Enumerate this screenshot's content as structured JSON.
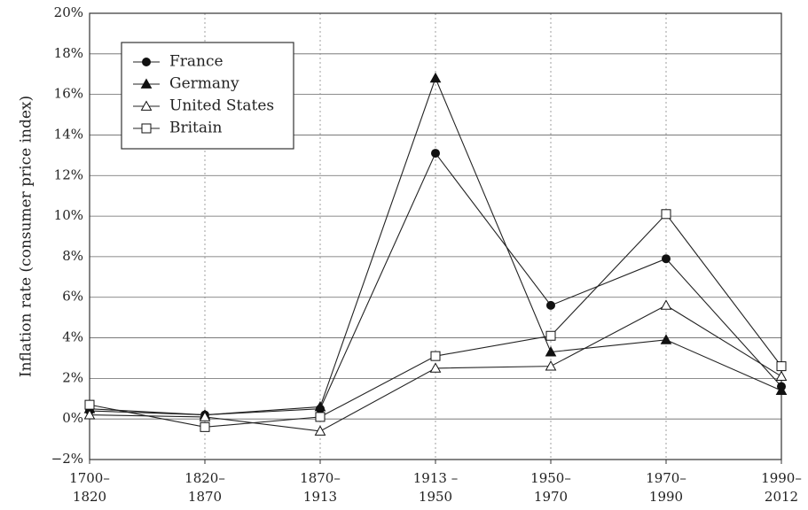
{
  "chart_data": {
    "type": "line",
    "ylabel": "Inflation rate (consumer price index)",
    "xlabel": "",
    "title": "",
    "ylim": [
      -2,
      20
    ],
    "y_ticks": [
      -2,
      0,
      2,
      4,
      6,
      8,
      10,
      12,
      14,
      16,
      18,
      20
    ],
    "y_tick_labels": [
      "−2%",
      "0%",
      "2%",
      "4%",
      "6%",
      "8%",
      "10%",
      "12%",
      "14%",
      "16%",
      "18%",
      "20%"
    ],
    "categories": [
      [
        "1700–",
        "1820"
      ],
      [
        "1820–",
        "1870"
      ],
      [
        "1870–",
        "1913"
      ],
      [
        "1913 –",
        "1950"
      ],
      [
        "1950–",
        "1970"
      ],
      [
        "1970–",
        "1990"
      ],
      [
        "1990–",
        "2012"
      ]
    ],
    "grid": {
      "horizontal": "solid",
      "vertical": "dotted"
    },
    "legend_position": "top-left",
    "series": [
      {
        "name": "France",
        "marker": "filled-circle",
        "values": [
          0.4,
          0.2,
          0.5,
          13.1,
          5.6,
          7.9,
          1.6
        ]
      },
      {
        "name": "Germany",
        "marker": "filled-triangle",
        "values": [
          0.5,
          0.2,
          0.6,
          16.8,
          3.3,
          3.9,
          1.4
        ]
      },
      {
        "name": "United States",
        "marker": "open-triangle",
        "values": [
          0.2,
          0.1,
          -0.6,
          2.5,
          2.6,
          5.6,
          2.1
        ]
      },
      {
        "name": "Britain",
        "marker": "open-square",
        "values": [
          0.7,
          -0.4,
          0.1,
          3.1,
          4.1,
          10.1,
          2.6
        ]
      }
    ]
  }
}
